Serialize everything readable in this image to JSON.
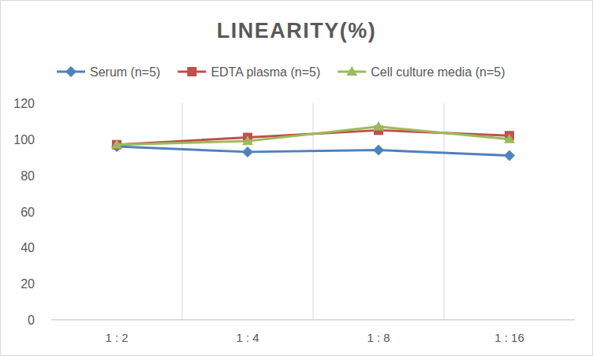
{
  "chart_data": {
    "type": "line",
    "title": "LINEARITY(%)",
    "categories": [
      "1:2",
      "1:4",
      "1:8",
      "1:16"
    ],
    "series": [
      {
        "name": "Serum (n=5)",
        "color": "#4f81bd",
        "marker": "diamond",
        "values": [
          96,
          93,
          94,
          91
        ]
      },
      {
        "name": "EDTA plasma (n=5)",
        "color": "#c0504d",
        "marker": "square",
        "values": [
          97,
          101,
          105,
          102
        ]
      },
      {
        "name": "Cell culture media (n=5)",
        "color": "#9bbb59",
        "marker": "triangle",
        "values": [
          97,
          99,
          107,
          100
        ]
      }
    ],
    "ylim": [
      0,
      120
    ],
    "yticks": [
      0,
      20,
      40,
      60,
      80,
      100,
      120
    ],
    "grid": true,
    "legend": "top"
  }
}
